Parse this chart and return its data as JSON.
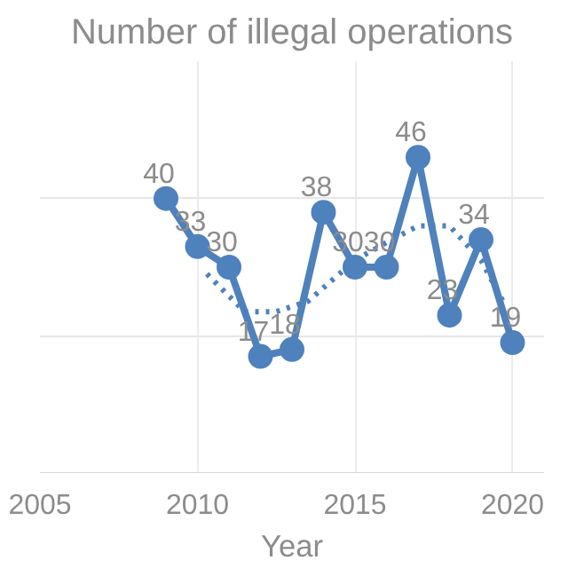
{
  "chart_data": {
    "type": "line",
    "title": "Number of illegal operations",
    "xlabel": "Year",
    "x": [
      2009,
      2010,
      2011,
      2012,
      2013,
      2014,
      2015,
      2016,
      2017,
      2018,
      2019,
      2020
    ],
    "series": [
      {
        "color": "#4f81bd",
        "values": [
          40,
          33,
          30,
          17,
          18,
          38,
          30,
          30,
          46,
          23,
          34,
          19
        ],
        "marker": "circle",
        "line_style": "solid",
        "data_labels": true
      },
      {
        "color": "#4f81bd",
        "x": [
          2010.3,
          2011.5,
          2012.5,
          2013.5,
          2015,
          2016,
          2017,
          2018,
          2019,
          2019.7
        ],
        "values": [
          29,
          23.5,
          23.5,
          25,
          31,
          33.6,
          36,
          36,
          31,
          25
        ],
        "marker": "none",
        "line_style": "dotted"
      }
    ],
    "xlim": [
      2005,
      2021
    ],
    "xticks": [
      2005,
      2010,
      2015,
      2020
    ],
    "ylim": [
      0,
      60
    ],
    "yticks": [
      {
        "value": 0,
        "label": null
      },
      {
        "value": 20,
        "label": null
      },
      {
        "value": 40,
        "label": null
      }
    ],
    "tick_labels": "x",
    "grid": true
  }
}
